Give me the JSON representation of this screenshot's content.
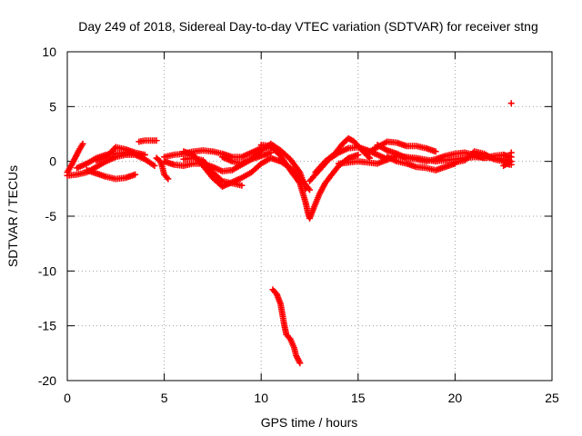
{
  "chart_data": {
    "type": "scatter",
    "title": "Day 249 of 2018, Sidereal Day-to-day VTEC variation (SDTVAR) for receiver stng",
    "xlabel": "GPS time / hours",
    "ylabel": "SDTVAR / TECUs",
    "xlim": [
      0,
      25
    ],
    "ylim": [
      -20,
      10
    ],
    "xticks": [
      0,
      5,
      10,
      15,
      20,
      25
    ],
    "yticks": [
      -20,
      -15,
      -10,
      -5,
      0,
      5,
      10
    ],
    "grid": true,
    "marker": "+",
    "marker_color": "#ff0000",
    "series": [
      {
        "name": "SDTVAR",
        "points": [
          [
            0.0,
            -1.0
          ],
          [
            0.2,
            -0.4
          ],
          [
            0.4,
            0.3
          ],
          [
            0.6,
            1.0
          ],
          [
            0.8,
            1.6
          ],
          [
            0.0,
            -1.3
          ],
          [
            0.5,
            -1.2
          ],
          [
            1.0,
            -1.0
          ],
          [
            1.5,
            -0.5
          ],
          [
            2.0,
            0.0
          ],
          [
            2.5,
            0.4
          ],
          [
            3.0,
            0.6
          ],
          [
            3.5,
            0.6
          ],
          [
            4.0,
            0.2
          ],
          [
            4.5,
            -0.4
          ],
          [
            0.5,
            -0.6
          ],
          [
            1.0,
            -0.2
          ],
          [
            1.5,
            0.3
          ],
          [
            2.0,
            0.6
          ],
          [
            2.5,
            0.7
          ],
          [
            3.0,
            0.8
          ],
          [
            3.5,
            0.7
          ],
          [
            4.0,
            0.6
          ],
          [
            1.0,
            -0.8
          ],
          [
            1.5,
            -1.1
          ],
          [
            2.0,
            -1.4
          ],
          [
            2.5,
            -1.6
          ],
          [
            3.0,
            -1.5
          ],
          [
            3.5,
            -1.2
          ],
          [
            1.5,
            0.1
          ],
          [
            2.0,
            0.4
          ],
          [
            2.5,
            1.3
          ],
          [
            3.0,
            1.1
          ],
          [
            3.5,
            0.8
          ],
          [
            4.0,
            0.6
          ],
          [
            3.7,
            1.8
          ],
          [
            4.0,
            1.9
          ],
          [
            4.3,
            1.9
          ],
          [
            4.6,
            1.9
          ],
          [
            4.6,
            0.3
          ],
          [
            4.8,
            0.0
          ],
          [
            4.9,
            -0.5
          ],
          [
            5.0,
            -1.2
          ],
          [
            5.2,
            -1.6
          ],
          [
            5.0,
            0.4
          ],
          [
            5.5,
            0.6
          ],
          [
            6.0,
            0.7
          ],
          [
            6.5,
            0.9
          ],
          [
            7.0,
            1.0
          ],
          [
            7.5,
            0.9
          ],
          [
            8.0,
            0.7
          ],
          [
            8.5,
            0.4
          ],
          [
            9.0,
            0.4
          ],
          [
            9.5,
            0.8
          ],
          [
            10.0,
            1.2
          ],
          [
            10.5,
            1.3
          ],
          [
            10.8,
            0.9
          ],
          [
            5.0,
            0.0
          ],
          [
            5.5,
            -0.3
          ],
          [
            6.0,
            -0.4
          ],
          [
            6.5,
            -0.2
          ],
          [
            7.0,
            -0.2
          ],
          [
            7.5,
            -0.5
          ],
          [
            8.0,
            -0.9
          ],
          [
            8.5,
            -0.8
          ],
          [
            9.0,
            -0.3
          ],
          [
            9.5,
            0.2
          ],
          [
            10.0,
            0.5
          ],
          [
            10.5,
            0.8
          ],
          [
            6.0,
            0.2
          ],
          [
            6.5,
            0.3
          ],
          [
            7.0,
            0.1
          ],
          [
            7.5,
            -1.0
          ],
          [
            8.0,
            -1.8
          ],
          [
            8.5,
            -2.0
          ],
          [
            9.0,
            -2.2
          ],
          [
            6.0,
            0.9
          ],
          [
            6.5,
            0.6
          ],
          [
            7.0,
            -0.4
          ],
          [
            7.5,
            -1.5
          ],
          [
            8.0,
            -2.3
          ],
          [
            8.5,
            -1.9
          ],
          [
            9.0,
            -1.5
          ],
          [
            9.5,
            -1.0
          ],
          [
            10.0,
            -0.2
          ],
          [
            10.5,
            0.3
          ],
          [
            11.0,
            0.0
          ],
          [
            11.5,
            -0.6
          ],
          [
            12.0,
            -1.5
          ],
          [
            12.5,
            -2.6
          ],
          [
            8.0,
            0.4
          ],
          [
            8.5,
            0.0
          ],
          [
            9.0,
            -0.2
          ],
          [
            9.5,
            0.2
          ],
          [
            10.0,
            1.0
          ],
          [
            10.5,
            1.6
          ],
          [
            11.0,
            1.0
          ],
          [
            11.5,
            0.2
          ],
          [
            12.0,
            -1.0
          ],
          [
            12.3,
            -2.5
          ],
          [
            10.0,
            1.5
          ],
          [
            10.5,
            1.4
          ],
          [
            11.0,
            0.5
          ],
          [
            11.5,
            -0.8
          ],
          [
            12.0,
            -2.0
          ],
          [
            12.3,
            -3.8
          ],
          [
            12.4,
            -4.6
          ],
          [
            12.5,
            -5.2
          ],
          [
            12.7,
            -4.3
          ],
          [
            13.0,
            -3.0
          ],
          [
            13.3,
            -2.0
          ],
          [
            13.6,
            -1.3
          ],
          [
            14.0,
            -0.4
          ],
          [
            14.5,
            0.3
          ],
          [
            15.0,
            0.6
          ],
          [
            12.5,
            -1.8
          ],
          [
            13.0,
            -0.8
          ],
          [
            13.5,
            0.2
          ],
          [
            14.0,
            0.8
          ],
          [
            14.5,
            1.2
          ],
          [
            15.0,
            1.3
          ],
          [
            15.5,
            1.0
          ],
          [
            16.0,
            0.6
          ],
          [
            16.5,
            0.2
          ],
          [
            12.8,
            -1.0
          ],
          [
            13.3,
            0.0
          ],
          [
            13.8,
            0.7
          ],
          [
            14.2,
            1.6
          ],
          [
            14.5,
            2.1
          ],
          [
            14.8,
            1.8
          ],
          [
            15.2,
            1.0
          ],
          [
            15.6,
            0.3
          ],
          [
            14.0,
            -0.2
          ],
          [
            15.0,
            0.0
          ],
          [
            16.0,
            -0.2
          ],
          [
            17.0,
            0.5
          ],
          [
            18.0,
            0.3
          ],
          [
            19.0,
            0.0
          ],
          [
            20.0,
            0.2
          ],
          [
            21.0,
            0.4
          ],
          [
            22.0,
            0.3
          ],
          [
            22.8,
            0.1
          ],
          [
            15.5,
            0.8
          ],
          [
            16.5,
            1.8
          ],
          [
            17.0,
            1.7
          ],
          [
            17.5,
            1.4
          ],
          [
            18.0,
            1.4
          ],
          [
            18.5,
            1.2
          ],
          [
            19.0,
            0.9
          ],
          [
            16.5,
            0.4
          ],
          [
            17.0,
            0.0
          ],
          [
            17.5,
            -0.2
          ],
          [
            18.0,
            -0.5
          ],
          [
            18.5,
            -0.6
          ],
          [
            19.0,
            -0.8
          ],
          [
            19.5,
            -0.5
          ],
          [
            20.0,
            -0.2
          ],
          [
            16.0,
            1.5
          ],
          [
            16.5,
            1.0
          ],
          [
            17.0,
            0.7
          ],
          [
            17.5,
            0.3
          ],
          [
            18.0,
            0.2
          ],
          [
            18.5,
            0.0
          ],
          [
            19.0,
            0.2
          ],
          [
            19.5,
            0.5
          ],
          [
            20.0,
            0.7
          ],
          [
            20.5,
            0.8
          ],
          [
            21.0,
            0.6
          ],
          [
            21.5,
            0.3
          ],
          [
            22.0,
            0.5
          ],
          [
            22.5,
            0.6
          ],
          [
            22.9,
            0.4
          ],
          [
            20.0,
            -0.1
          ],
          [
            20.5,
            0.1
          ],
          [
            21.0,
            0.9
          ],
          [
            21.5,
            0.7
          ],
          [
            22.0,
            0.2
          ],
          [
            22.5,
            0.0
          ],
          [
            22.8,
            -0.3
          ],
          [
            22.5,
            -0.4
          ],
          [
            22.9,
            0.0
          ],
          [
            22.9,
            -0.3
          ],
          [
            22.9,
            0.8
          ],
          [
            22.9,
            5.3
          ],
          [
            10.6,
            -11.7
          ],
          [
            10.8,
            -12.1
          ],
          [
            11.0,
            -13.0
          ],
          [
            11.1,
            -14.0
          ],
          [
            11.2,
            -15.0
          ],
          [
            11.3,
            -15.8
          ],
          [
            11.5,
            -16.2
          ],
          [
            11.7,
            -17.0
          ],
          [
            11.8,
            -17.7
          ],
          [
            12.0,
            -18.4
          ]
        ]
      }
    ]
  }
}
